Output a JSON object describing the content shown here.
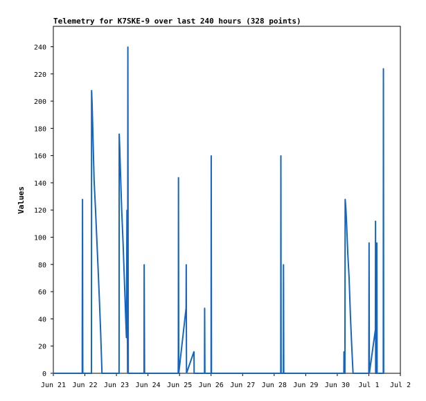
{
  "chart_data": {
    "type": "line",
    "title": "Telemetry for K7SKE-9 over last 240 hours (328 points)",
    "xlabel": "",
    "ylabel": "Values",
    "x_axis": {
      "type": "date",
      "range": [
        "Jun 21",
        "Jul 2"
      ],
      "tick_labels": [
        "Jun 21",
        "Jun 22",
        "Jun 23",
        "Jun 24",
        "Jun 25",
        "Jun 26",
        "Jun 27",
        "Jun 28",
        "Jun 29",
        "Jun 30",
        "Jul 1",
        "Jul 2"
      ]
    },
    "y_axis": {
      "ylim": [
        0,
        255
      ],
      "tick_labels": [
        "0",
        "20",
        "40",
        "60",
        "80",
        "100",
        "120",
        "140",
        "160",
        "180",
        "200",
        "220",
        "240"
      ]
    },
    "grid": false,
    "legend": "none",
    "colors": {
      "series": "#1565c0",
      "axis": "#000000",
      "background": "#ffffff"
    },
    "series": [
      {
        "points": [
          [
            "Jun 21 00:00",
            0
          ],
          [
            "Jun 21 22:00",
            0
          ],
          [
            "Jun 21 22:00",
            31
          ],
          [
            "Jun 21 22:12",
            128
          ],
          [
            "Jun 21 22:24",
            0
          ],
          [
            "Jun 22 05:00",
            0
          ],
          [
            "Jun 22 05:06",
            208
          ],
          [
            "Jun 22 05:30",
            198
          ],
          [
            "Jun 22 06:00",
            180
          ],
          [
            "Jun 22 07:00",
            142
          ],
          [
            "Jun 22 08:00",
            122
          ],
          [
            "Jun 22 09:00",
            100
          ],
          [
            "Jun 22 10:00",
            78
          ],
          [
            "Jun 22 11:00",
            55
          ],
          [
            "Jun 22 12:00",
            30
          ],
          [
            "Jun 22 13:00",
            0
          ],
          [
            "Jun 23 02:00",
            0
          ],
          [
            "Jun 23 02:06",
            176
          ],
          [
            "Jun 23 02:30",
            166
          ],
          [
            "Jun 23 03:00",
            150
          ],
          [
            "Jun 23 04:00",
            120
          ],
          [
            "Jun 23 05:00",
            97
          ],
          [
            "Jun 23 06:00",
            70
          ],
          [
            "Jun 23 07:00",
            42
          ],
          [
            "Jun 23 07:36",
            26
          ],
          [
            "Jun 23 08:00",
            120
          ],
          [
            "Jun 23 08:30",
            0
          ],
          [
            "Jun 23 08:42",
            240
          ],
          [
            "Jun 23 09:00",
            0
          ],
          [
            "Jun 23 21:00",
            0
          ],
          [
            "Jun 23 21:06",
            80
          ],
          [
            "Jun 23 21:24",
            0
          ],
          [
            "Jun 24 23:00",
            0
          ],
          [
            "Jun 24 23:06",
            16
          ],
          [
            "Jun 24 23:12",
            144
          ],
          [
            "Jun 24 23:24",
            0
          ],
          [
            "Jun 25 05:00",
            48
          ],
          [
            "Jun 25 05:06",
            80
          ],
          [
            "Jun 25 05:18",
            0
          ],
          [
            "Jun 25 11:00",
            16
          ],
          [
            "Jun 25 11:06",
            0
          ],
          [
            "Jun 25 19:00",
            0
          ],
          [
            "Jun 25 19:06",
            48
          ],
          [
            "Jun 25 19:18",
            0
          ],
          [
            "Jun 26 00:00",
            0
          ],
          [
            "Jun 26 00:06",
            160
          ],
          [
            "Jun 26 00:18",
            0
          ],
          [
            "Jun 28 05:00",
            0
          ],
          [
            "Jun 28 05:06",
            160
          ],
          [
            "Jun 28 05:18",
            0
          ],
          [
            "Jun 28 07:00",
            0
          ],
          [
            "Jun 28 07:06",
            80
          ],
          [
            "Jun 28 07:18",
            0
          ],
          [
            "Jun 30 05:00",
            0
          ],
          [
            "Jun 30 05:06",
            16
          ],
          [
            "Jun 30 05:12",
            0
          ],
          [
            "Jun 30 05:48",
            0
          ],
          [
            "Jun 30 06:00",
            128
          ],
          [
            "Jun 30 06:30",
            122
          ],
          [
            "Jun 30 07:00",
            112
          ],
          [
            "Jun 30 08:00",
            88
          ],
          [
            "Jun 30 09:00",
            70
          ],
          [
            "Jun 30 10:00",
            42
          ],
          [
            "Jun 30 11:00",
            20
          ],
          [
            "Jun 30 12:00",
            0
          ],
          [
            "Jul 1 00:00",
            0
          ],
          [
            "Jul 1 00:06",
            48
          ],
          [
            "Jul 1 00:12",
            96
          ],
          [
            "Jul 1 00:24",
            0
          ],
          [
            "Jul 1 05:00",
            32
          ],
          [
            "Jul 1 05:06",
            112
          ],
          [
            "Jul 1 05:12",
            0
          ],
          [
            "Jul 1 06:00",
            0
          ],
          [
            "Jul 1 06:06",
            96
          ],
          [
            "Jul 1 06:18",
            0
          ],
          [
            "Jul 1 11:00",
            0
          ],
          [
            "Jul 1 11:06",
            224
          ],
          [
            "Jul 1 11:18",
            0
          ]
        ]
      }
    ]
  }
}
